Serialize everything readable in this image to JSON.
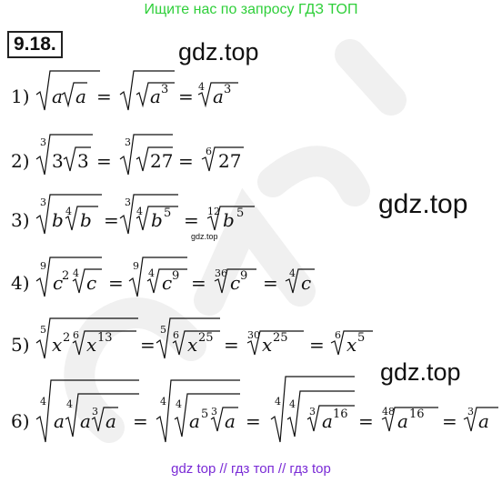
{
  "banner": "Ищите нас по запросу ГДЗ ТОП",
  "problem_number": "9.18.",
  "watermarks": [
    "gdz.top",
    "gdz.top",
    "gdz.top"
  ],
  "small_watermark": "gdz.top",
  "footer": "gdz top  //  гдз топ  //  гдз top",
  "colors": {
    "banner": "#2fcf3a",
    "footer": "#7a2bd6",
    "faint_watermark": "#f0f0f0"
  },
  "items": [
    {
      "label": "1)",
      "latex": "\\sqrt{a\\sqrt{a}} = \\sqrt{\\sqrt{a^3}} = \\sqrt[4]{a^3}"
    },
    {
      "label": "2)",
      "latex": "\\sqrt[3]{3\\sqrt{3}} = \\sqrt[3]{\\sqrt{27}} = \\sqrt[6]{27}"
    },
    {
      "label": "3)",
      "latex": "\\sqrt[3]{b\\sqrt[4]{b}} = \\sqrt[3]{\\sqrt[4]{b^5}} = \\sqrt[12]{b^5}"
    },
    {
      "label": "4)",
      "latex": "\\sqrt[9]{c^2\\sqrt[4]{c}} = \\sqrt[9]{\\sqrt[4]{c^9}} = \\sqrt[36]{c^9} = \\sqrt[4]{c}"
    },
    {
      "label": "5)",
      "latex": "\\sqrt[5]{x^2\\sqrt[6]{x^{13}}} = \\sqrt[5]{\\sqrt[6]{x^{25}}} = \\sqrt[30]{x^{25}} = \\sqrt[6]{x^5}"
    },
    {
      "label": "6)",
      "latex": "\\sqrt[4]{a\\sqrt[4]{a\\sqrt[3]{a}}} = \\sqrt[4]{\\sqrt[4]{a^5\\sqrt[3]{a}}} = \\sqrt[4]{\\sqrt[4]{\\sqrt[3]{a^{16}}}} = \\sqrt[48]{a^{16}} = \\sqrt[3]{a}"
    }
  ]
}
